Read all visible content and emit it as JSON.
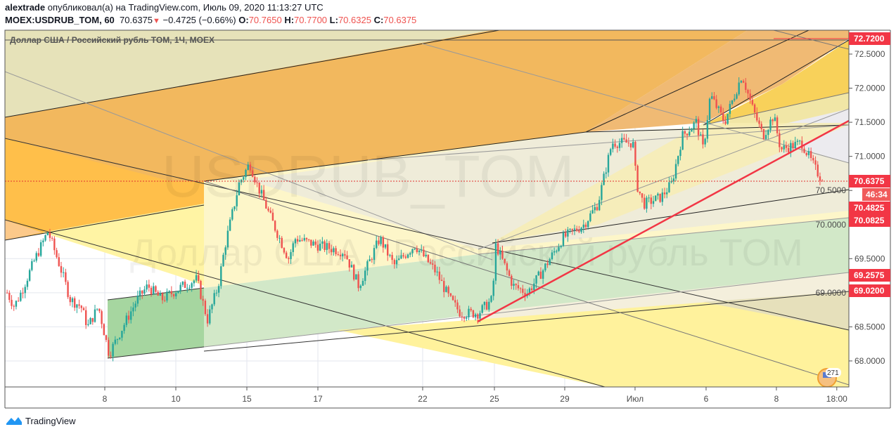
{
  "header": {
    "author": "alextrade",
    "published_text": "опубликовал(а) на TradingView.com, Июль 09, 2020 11:13:27 UTC",
    "symbol": "MOEX:USDRUB_TOM, 60",
    "last": "70.6375",
    "change": "−0.4725 (−0.66%)",
    "o_label": "O:",
    "o": "70.7650",
    "h_label": "H:",
    "h": "70.7700",
    "l_label": "L:",
    "l": "70.6325",
    "c_label": "C:",
    "c": "70.6375"
  },
  "chart_title": "Доллар США / Российский рубль TOM, 1Ч, MOEX",
  "watermark": {
    "symbol": "USDRUB_TOM",
    "description": "Доллар США / Российский рубль TOM"
  },
  "footer": {
    "brand": "TradingView"
  },
  "badge_count": "271",
  "colors": {
    "up": "#26a69a",
    "down": "#ef5350",
    "accent": "#f23645"
  },
  "chart_data": {
    "type": "candlestick",
    "interval": "1h",
    "x_unit": "trading days since Jun 8",
    "price_ticks": [
      "72.5000",
      "72.0000",
      "71.5000",
      "71.0000",
      "70.5000",
      "70.0000",
      "69.5000",
      "69.0000",
      "68.5000",
      "68.0000"
    ],
    "price_tick_values": [
      72.5,
      72.0,
      71.5,
      71.0,
      70.5,
      70.0,
      69.5,
      69.0,
      68.5,
      68.0
    ],
    "time_ticks": [
      {
        "label": "8",
        "t": 0
      },
      {
        "label": "10",
        "t": 2
      },
      {
        "label": "15",
        "t": 4
      },
      {
        "label": "17",
        "t": 6
      },
      {
        "label": "22",
        "t": 8.95
      },
      {
        "label": "25",
        "t": 10.97
      },
      {
        "label": "29",
        "t": 12.95
      },
      {
        "label": "Июл",
        "t": 14.93
      },
      {
        "label": "6",
        "t": 16.93
      },
      {
        "label": "8",
        "t": 18.91
      },
      {
        "label": "18:00",
        "t": 20.61
      }
    ],
    "price_labels": [
      {
        "label": "72.7200",
        "value": 72.72
      },
      {
        "label": "70.6375",
        "value": 70.6375,
        "countdown": "46:34"
      },
      {
        "label": "70.4825",
        "value": 70.4825
      },
      {
        "label": "70.0825",
        "value": 70.0825
      },
      {
        "label": "69.2575",
        "value": 69.2575
      },
      {
        "label": "69.0200",
        "value": 69.02
      }
    ],
    "last_price": 70.6375,
    "ylim": [
      67.6,
      72.85
    ],
    "path": [
      [
        -2.75,
        69.0
      ],
      [
        -2.55,
        68.8
      ],
      [
        -2.36,
        69.0
      ],
      [
        -1.96,
        69.5
      ],
      [
        -1.6,
        69.9
      ],
      [
        -1.27,
        69.4
      ],
      [
        -0.97,
        68.9
      ],
      [
        -0.67,
        68.8
      ],
      [
        -0.48,
        68.5
      ],
      [
        -0.18,
        68.8
      ],
      [
        0.12,
        68.1
      ],
      [
        0.51,
        68.5
      ],
      [
        0.91,
        68.9
      ],
      [
        1.21,
        69.1
      ],
      [
        1.6,
        68.9
      ],
      [
        2.2,
        69.1
      ],
      [
        2.59,
        69.2
      ],
      [
        2.89,
        68.6
      ],
      [
        3.19,
        69.1
      ],
      [
        3.39,
        69.7
      ],
      [
        3.78,
        70.6
      ],
      [
        4.08,
        70.9
      ],
      [
        4.28,
        70.6
      ],
      [
        4.67,
        70.1
      ],
      [
        5.17,
        69.5
      ],
      [
        5.37,
        69.8
      ],
      [
        5.96,
        69.7
      ],
      [
        6.75,
        69.6
      ],
      [
        7.15,
        69.1
      ],
      [
        7.74,
        69.8
      ],
      [
        8.14,
        69.4
      ],
      [
        8.73,
        69.7
      ],
      [
        9.33,
        69.3
      ],
      [
        9.72,
        68.9
      ],
      [
        10.02,
        68.7
      ],
      [
        10.51,
        68.7
      ],
      [
        10.91,
        68.9
      ],
      [
        11.01,
        69.7
      ],
      [
        11.5,
        69.1
      ],
      [
        11.9,
        69.0
      ],
      [
        12.3,
        69.3
      ],
      [
        12.89,
        69.8
      ],
      [
        13.49,
        70.0
      ],
      [
        13.88,
        70.3
      ],
      [
        14.28,
        71.2
      ],
      [
        14.87,
        71.2
      ],
      [
        14.97,
        70.6
      ],
      [
        15.17,
        70.3
      ],
      [
        15.66,
        70.4
      ],
      [
        15.96,
        70.6
      ],
      [
        16.26,
        71.3
      ],
      [
        16.65,
        71.5
      ],
      [
        16.85,
        71.1
      ],
      [
        17.05,
        71.9
      ],
      [
        17.45,
        71.5
      ],
      [
        17.94,
        72.2
      ],
      [
        18.24,
        71.7
      ],
      [
        18.53,
        71.3
      ],
      [
        18.83,
        71.6
      ],
      [
        19.03,
        71.1
      ],
      [
        19.62,
        71.2
      ],
      [
        20.02,
        70.8
      ],
      [
        20.22,
        70.6375
      ]
    ]
  }
}
